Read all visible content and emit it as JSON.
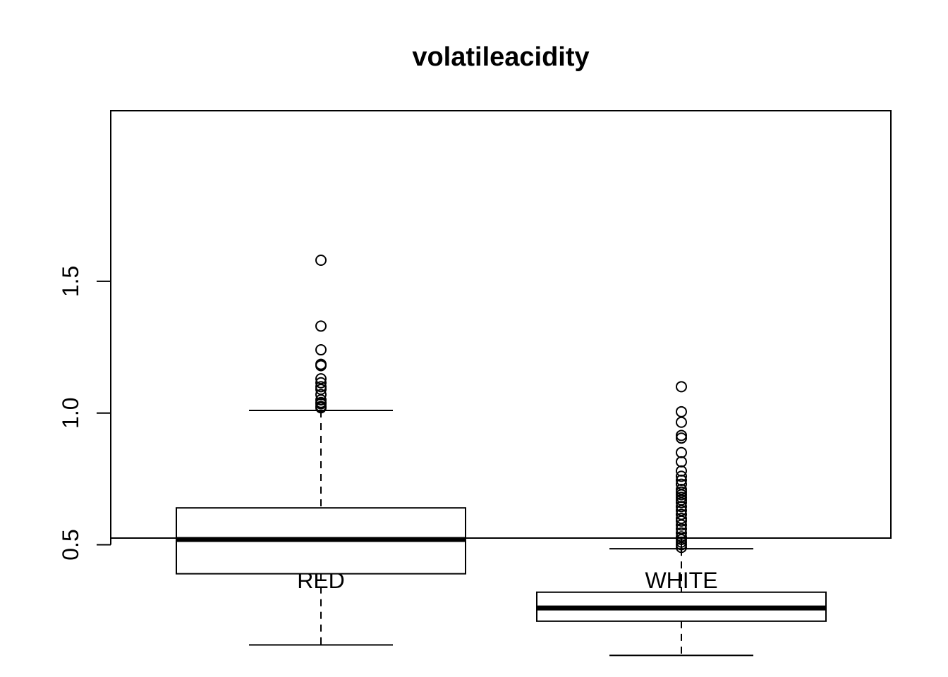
{
  "chart_data": {
    "type": "boxplot",
    "title": "volatileacidity",
    "xlabel": "",
    "ylabel": "",
    "ylim": [
      0.05,
      1.65
    ],
    "y_ticks": [
      0.5,
      1.0,
      1.5
    ],
    "y_tick_labels": [
      "0.5",
      "1.0",
      "1.5"
    ],
    "categories": [
      "RED",
      "WHITE"
    ],
    "grid": false,
    "legend": "none",
    "boxes": [
      {
        "category": "RED",
        "whisker_low": 0.12,
        "q1": 0.39,
        "median": 0.52,
        "q3": 0.64,
        "whisker_high": 1.01,
        "outliers": [
          1.02,
          1.025,
          1.035,
          1.04,
          1.05,
          1.07,
          1.09,
          1.1,
          1.115,
          1.13,
          1.18,
          1.185,
          1.24,
          1.33,
          1.58
        ]
      },
      {
        "category": "WHITE",
        "whisker_low": 0.08,
        "q1": 0.21,
        "median": 0.26,
        "q3": 0.32,
        "whisker_high": 0.485,
        "outliers": [
          0.49,
          0.5,
          0.51,
          0.52,
          0.53,
          0.545,
          0.56,
          0.575,
          0.59,
          0.6,
          0.615,
          0.63,
          0.645,
          0.66,
          0.67,
          0.68,
          0.69,
          0.7,
          0.71,
          0.73,
          0.745,
          0.76,
          0.78,
          0.815,
          0.85,
          0.905,
          0.915,
          0.965,
          1.005,
          1.1
        ]
      }
    ]
  }
}
